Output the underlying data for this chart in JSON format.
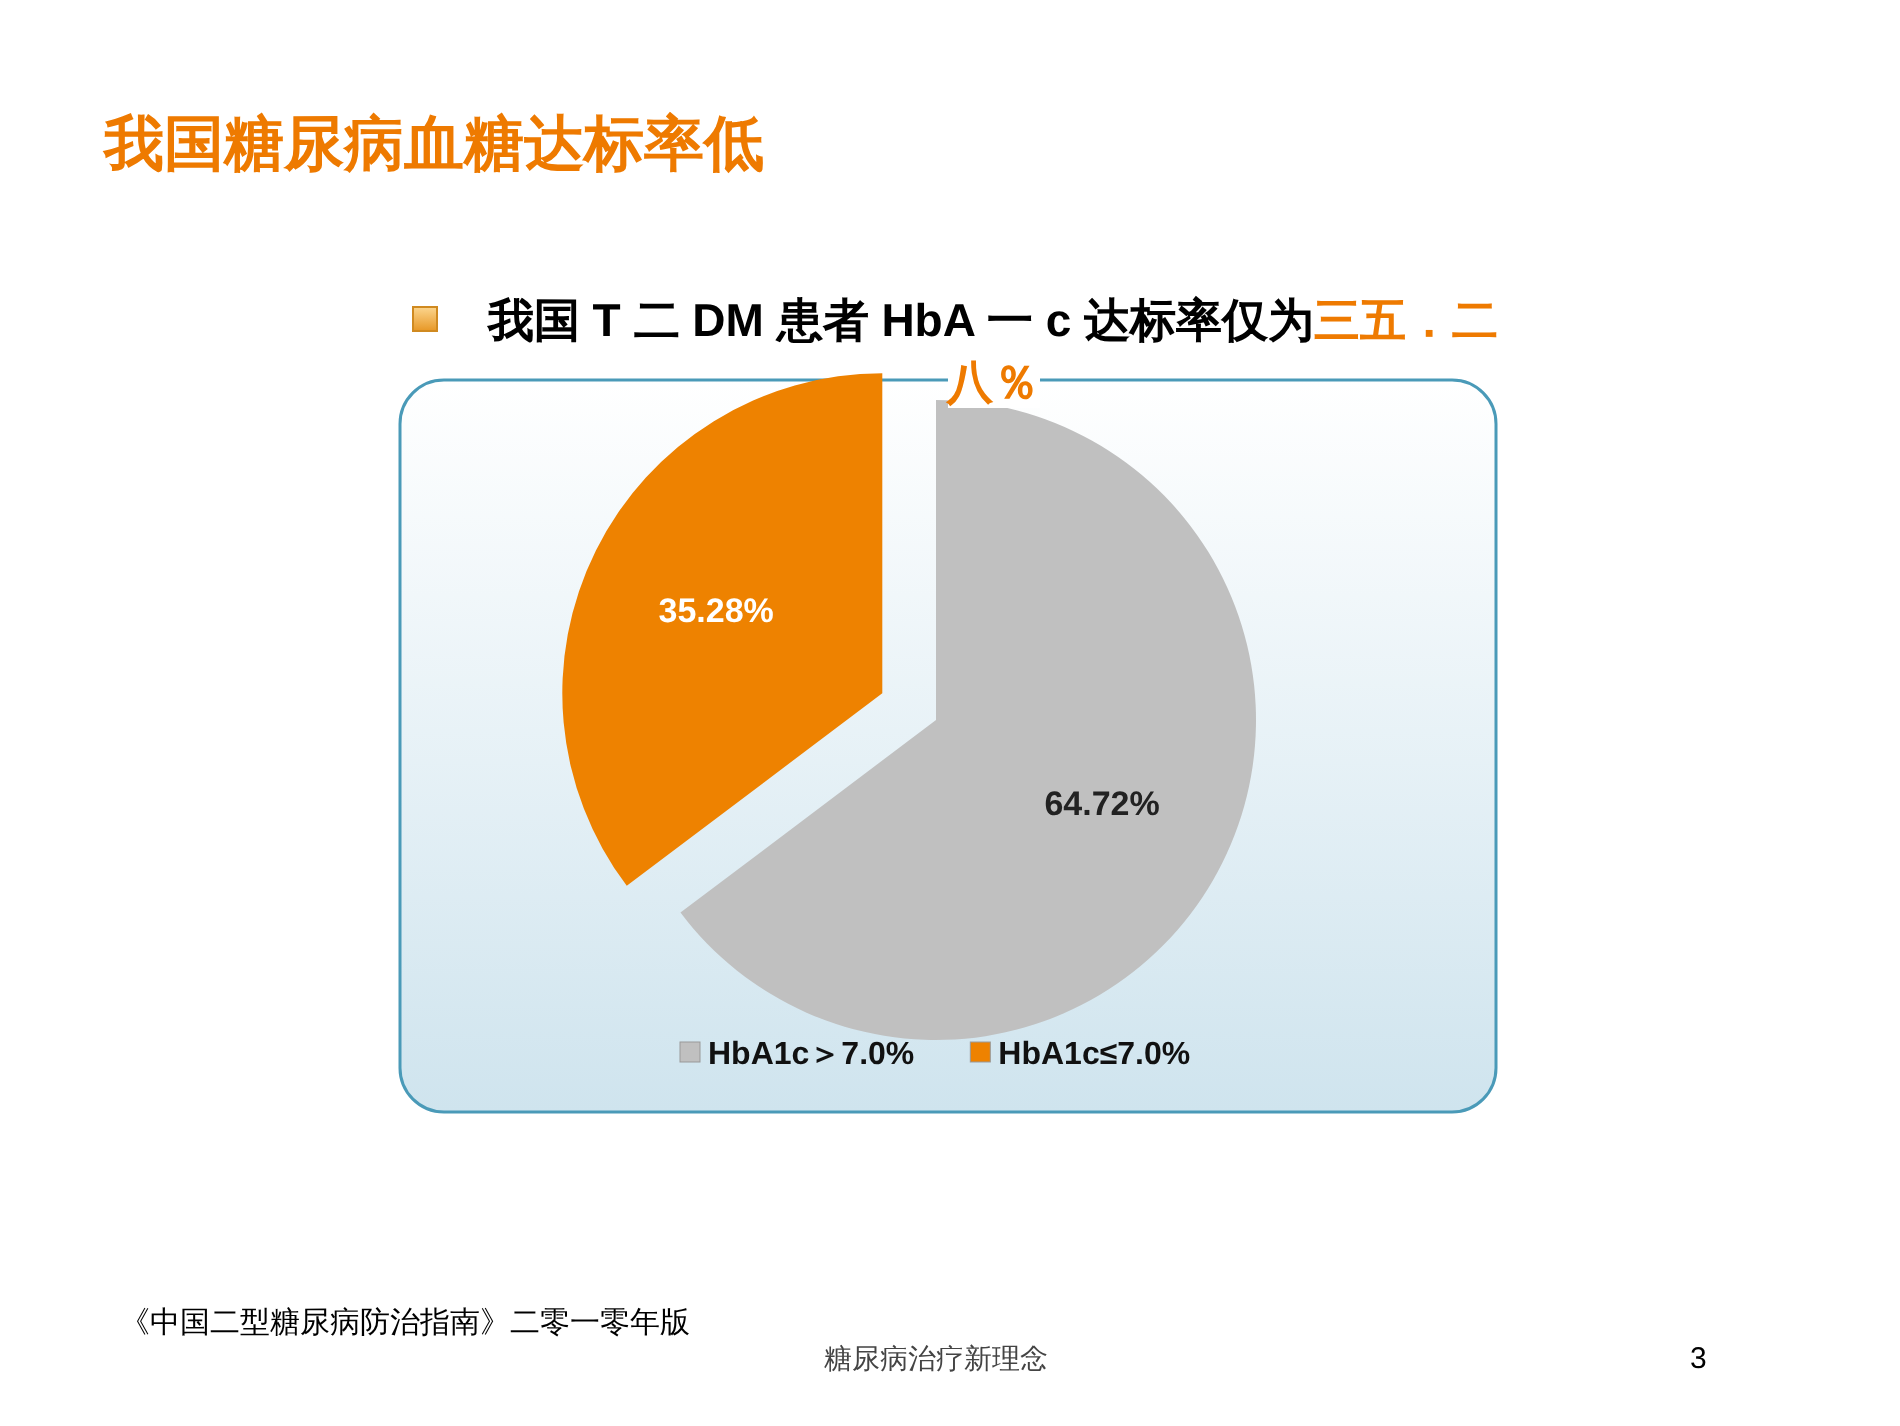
{
  "chart_data": {
    "type": "pie",
    "title": "我国糖尿病血糖达标率低",
    "subtitle": "我国 T 二 DM 患者 HbA 一 c 达标率仅为",
    "categories": [
      "HbA1c＞7.0%",
      "HbA1c≤7.0%"
    ],
    "values": [
      64.72,
      35.28
    ],
    "colors": [
      "#c0c0c0",
      "#ee8200"
    ],
    "value_labels": [
      "64.72%",
      "35.28%"
    ],
    "legend": "bottom",
    "annotations": [
      "三五．二八％",
      "《中国二型糖尿病防治指南》二零一零年版",
      "糖尿病治疗新理念",
      "3"
    ]
  }
}
